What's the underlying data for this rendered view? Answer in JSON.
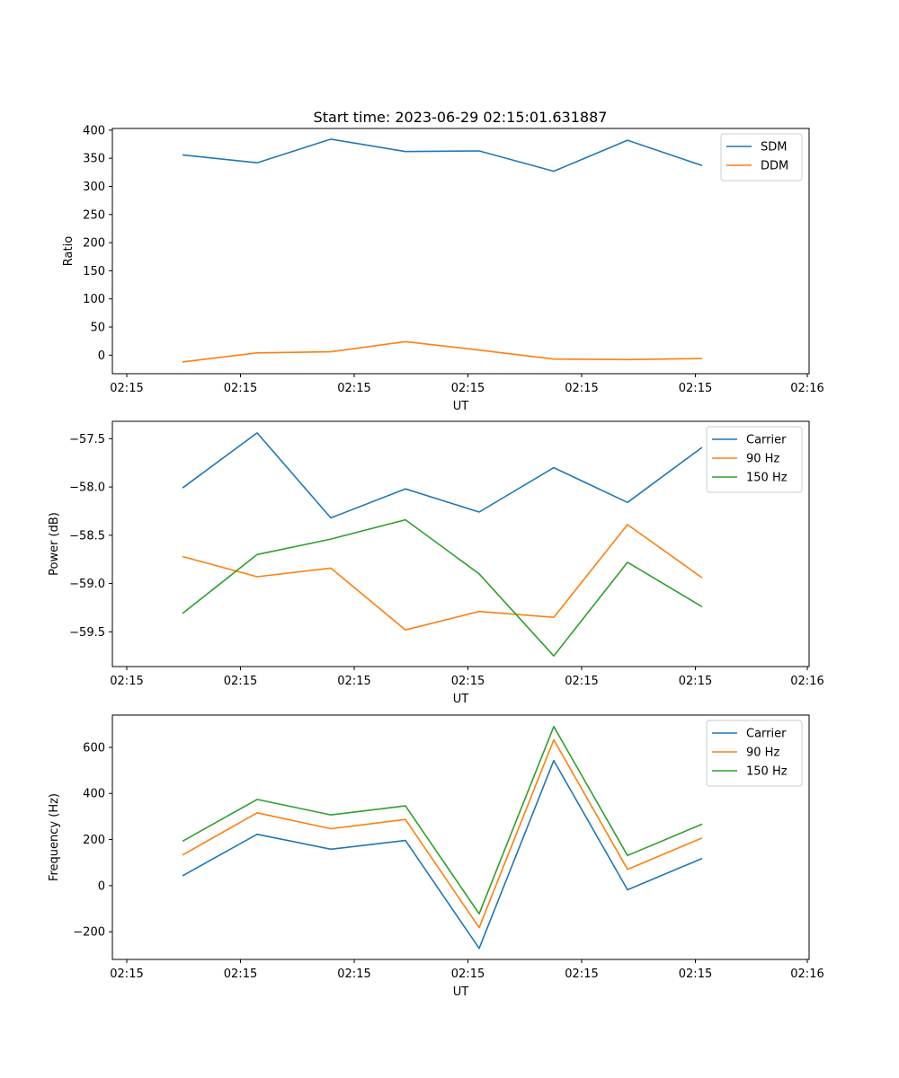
{
  "figure": {
    "title": "Start time: 2023-06-29 02:15:01.631887"
  },
  "chart_data": [
    {
      "type": "line",
      "title": "Start time: 2023-06-29 02:15:01.631887",
      "xlabel": "UT",
      "ylabel": "Ratio",
      "x_tick_labels": [
        "02:15",
        "02:15",
        "02:15",
        "02:15",
        "02:15",
        "02:15",
        "02:16"
      ],
      "y_ticks": [
        0,
        50,
        100,
        150,
        200,
        250,
        300,
        350,
        400
      ],
      "ylim": [
        -33,
        403
      ],
      "grid": false,
      "legend_position": "top-right",
      "x_points": 8,
      "series": [
        {
          "name": "SDM",
          "color": "#1f77b4",
          "values": [
            356,
            342,
            384,
            362,
            363,
            327,
            382,
            337
          ]
        },
        {
          "name": "DDM",
          "color": "#ff7f0e",
          "values": [
            -12,
            4,
            6,
            24,
            9,
            -7,
            -8,
            -6
          ]
        }
      ]
    },
    {
      "type": "line",
      "xlabel": "UT",
      "ylabel": "Power (dB)",
      "x_tick_labels": [
        "02:15",
        "02:15",
        "02:15",
        "02:15",
        "02:15",
        "02:15",
        "02:16"
      ],
      "y_ticks": [
        -59.5,
        -59.0,
        -58.5,
        -58.0,
        -57.5
      ],
      "y_tick_labels": [
        "−59.5",
        "−59.0",
        "−58.5",
        "−58.0",
        "−57.5"
      ],
      "ylim": [
        -59.86,
        -57.32
      ],
      "grid": false,
      "legend_position": "top-right",
      "x_points": 8,
      "series": [
        {
          "name": "Carrier",
          "color": "#1f77b4",
          "values": [
            -58.01,
            -57.44,
            -58.32,
            -58.02,
            -58.26,
            -57.8,
            -58.16,
            -57.59
          ]
        },
        {
          "name": "90 Hz",
          "color": "#ff7f0e",
          "values": [
            -58.72,
            -58.93,
            -58.84,
            -59.48,
            -59.29,
            -59.35,
            -58.39,
            -58.94
          ]
        },
        {
          "name": "150 Hz",
          "color": "#2ca02c",
          "values": [
            -59.31,
            -58.7,
            -58.54,
            -58.34,
            -58.9,
            -59.75,
            -58.78,
            -59.24
          ]
        }
      ]
    },
    {
      "type": "line",
      "xlabel": "UT",
      "ylabel": "Frequency (Hz)",
      "x_tick_labels": [
        "02:15",
        "02:15",
        "02:15",
        "02:15",
        "02:15",
        "02:15",
        "02:16"
      ],
      "y_ticks": [
        -200,
        0,
        200,
        400,
        600
      ],
      "y_tick_labels": [
        "−200",
        "0",
        "200",
        "400",
        "600"
      ],
      "ylim": [
        -320,
        740
      ],
      "grid": false,
      "legend_position": "top-right",
      "x_points": 8,
      "series": [
        {
          "name": "Carrier",
          "color": "#1f77b4",
          "values": [
            43,
            223,
            158,
            196,
            -272,
            543,
            -18,
            118
          ]
        },
        {
          "name": "90 Hz",
          "color": "#ff7f0e",
          "values": [
            133,
            316,
            247,
            287,
            -182,
            633,
            71,
            207
          ]
        },
        {
          "name": "150 Hz",
          "color": "#2ca02c",
          "values": [
            193,
            374,
            307,
            346,
            -122,
            690,
            131,
            267
          ]
        }
      ]
    }
  ]
}
